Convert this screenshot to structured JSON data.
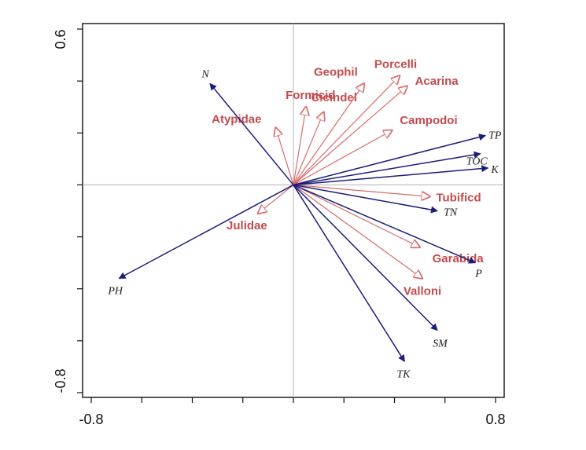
{
  "chart_data": {
    "type": "biplot",
    "title": "",
    "xlabel": "",
    "ylabel": "",
    "xlim": [
      -0.8,
      0.8
    ],
    "ylim": [
      -0.8,
      0.6
    ],
    "x_tick_labels": [
      "-0.8",
      "0.8"
    ],
    "y_tick_labels": [
      "0.6",
      "-0.8"
    ],
    "x_ticks": [
      -0.8,
      -0.6,
      -0.4,
      -0.2,
      0,
      0.2,
      0.4,
      0.6,
      0.8
    ],
    "y_ticks": [
      0.6,
      0.4,
      0.2,
      0,
      -0.2,
      -0.4,
      -0.6,
      -0.8
    ],
    "colors": {
      "environment": "#1c1c7a",
      "species": "#d86a6a",
      "species_text": "#c44a4d",
      "axis": "#111111",
      "crosshair": "#b0b0b0"
    },
    "environment_vectors": [
      {
        "label": "N",
        "x": -0.33,
        "y": 0.39
      },
      {
        "label": "TP",
        "x": 0.76,
        "y": 0.19
      },
      {
        "label": "TOC",
        "x": 0.74,
        "y": 0.12
      },
      {
        "label": "K",
        "x": 0.77,
        "y": 0.065
      },
      {
        "label": "TN",
        "x": 0.57,
        "y": -0.1
      },
      {
        "label": "P",
        "x": 0.72,
        "y": -0.3
      },
      {
        "label": "SM",
        "x": 0.57,
        "y": -0.56
      },
      {
        "label": "TK",
        "x": 0.44,
        "y": -0.68
      },
      {
        "label": "PH",
        "x": -0.69,
        "y": -0.36
      }
    ],
    "species_vectors": [
      {
        "label": "Atypidae",
        "x": -0.07,
        "y": 0.22
      },
      {
        "label": "Formicid",
        "x": 0.05,
        "y": 0.3
      },
      {
        "label": "Cicindel",
        "x": 0.12,
        "y": 0.28
      },
      {
        "label": "Geophil",
        "x": 0.28,
        "y": 0.39
      },
      {
        "label": "Porcelli",
        "x": 0.42,
        "y": 0.42
      },
      {
        "label": "Acarina",
        "x": 0.45,
        "y": 0.38
      },
      {
        "label": "Campodoi",
        "x": 0.39,
        "y": 0.21
      },
      {
        "label": "Tubificd",
        "x": 0.54,
        "y": -0.045
      },
      {
        "label": "Garabida",
        "x": 0.5,
        "y": -0.24
      },
      {
        "label": "Valloni",
        "x": 0.51,
        "y": -0.36
      },
      {
        "label": "Julidae",
        "x": -0.14,
        "y": -0.11
      }
    ]
  }
}
